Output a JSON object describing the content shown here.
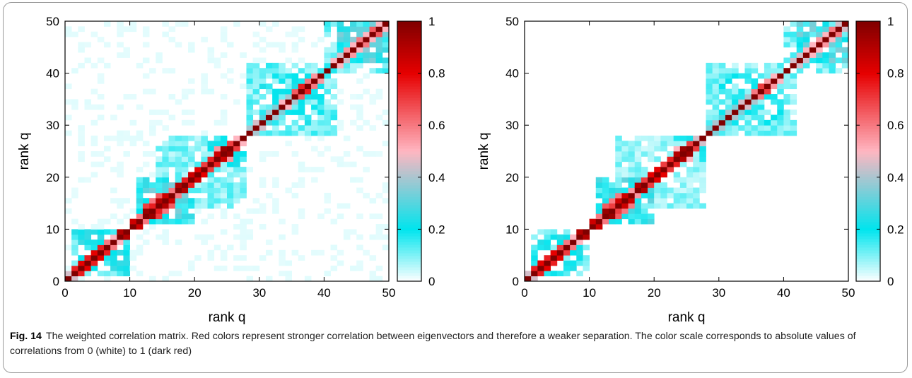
{
  "caption": {
    "label": "Fig. 14",
    "text": "The weighted correlation matrix. Red colors represent stronger correlation between eigenvectors and therefore a weaker separation. The color scale corresponds to absolute values of correlations from 0 (white) to 1 (dark red)"
  },
  "colors": {
    "scale": [
      "#ffffff",
      "#00e5ee",
      "#ffb6c1",
      "#e60000",
      "#800000"
    ],
    "scale_stops": [
      0,
      0.2,
      0.5,
      0.8,
      1.0
    ]
  },
  "chart_data": [
    {
      "type": "heatmap",
      "title": "",
      "xlabel": "rank q",
      "ylabel": "rank q",
      "xlim": [
        0,
        50
      ],
      "ylim": [
        0,
        50
      ],
      "xticks": [
        "0",
        "10",
        "20",
        "30",
        "40",
        "50"
      ],
      "yticks": [
        "0",
        "10",
        "20",
        "30",
        "40",
        "50"
      ],
      "colorbar": {
        "min": 0,
        "max": 1,
        "ticks": [
          "0",
          "0.2",
          "0.4",
          "0.6",
          "0.8",
          "1"
        ]
      },
      "matrix_size": 50,
      "pairs": [
        [
          1,
          2,
          0.45
        ],
        [
          2,
          3,
          0.75
        ],
        [
          3,
          4,
          0.8
        ],
        [
          4,
          5,
          0.75
        ],
        [
          5,
          6,
          0.8
        ],
        [
          6,
          7,
          0.75
        ],
        [
          7,
          8,
          0.6
        ],
        [
          8,
          9,
          0.5
        ],
        [
          9,
          10,
          0.9
        ],
        [
          11,
          12,
          0.85
        ],
        [
          12,
          13,
          0.6
        ],
        [
          13,
          14,
          0.95
        ],
        [
          13,
          15,
          0.7
        ],
        [
          14,
          15,
          0.75
        ],
        [
          14,
          16,
          0.6
        ],
        [
          15,
          16,
          0.9
        ],
        [
          15,
          17,
          0.65
        ],
        [
          16,
          17,
          0.85
        ],
        [
          17,
          18,
          0.6
        ],
        [
          18,
          19,
          0.9
        ],
        [
          19,
          20,
          0.75
        ],
        [
          20,
          21,
          0.85
        ],
        [
          21,
          22,
          0.8
        ],
        [
          22,
          23,
          0.7
        ],
        [
          23,
          24,
          0.75
        ],
        [
          24,
          25,
          0.85
        ],
        [
          25,
          26,
          0.95
        ],
        [
          26,
          27,
          0.7
        ],
        [
          24,
          26,
          0.55
        ],
        [
          27,
          28,
          0.5
        ],
        [
          29,
          30,
          0.4
        ],
        [
          30,
          31,
          0.45
        ],
        [
          31,
          32,
          0.3
        ],
        [
          32,
          33,
          0.4
        ],
        [
          33,
          34,
          0.35
        ],
        [
          34,
          35,
          0.5
        ],
        [
          35,
          36,
          0.4
        ],
        [
          36,
          37,
          0.65
        ],
        [
          37,
          38,
          0.75
        ],
        [
          38,
          39,
          0.6
        ],
        [
          39,
          40,
          0.55
        ],
        [
          42,
          43,
          0.5
        ],
        [
          43,
          44,
          0.45
        ],
        [
          44,
          45,
          0.55
        ],
        [
          45,
          46,
          0.5
        ],
        [
          46,
          47,
          0.6
        ],
        [
          47,
          48,
          0.5
        ],
        [
          48,
          49,
          0.65
        ],
        [
          49,
          50,
          0.5
        ]
      ],
      "blocks": [
        [
          1,
          10,
          0.22
        ],
        [
          11,
          20,
          0.28
        ],
        [
          14,
          28,
          0.12
        ],
        [
          22,
          28,
          0.2
        ],
        [
          28,
          42,
          0.14
        ],
        [
          30,
          40,
          0.2
        ],
        [
          40,
          50,
          0.15
        ],
        [
          42,
          50,
          0.3
        ],
        [
          0,
          50,
          0.02
        ]
      ]
    },
    {
      "type": "heatmap",
      "title": "",
      "xlabel": "rank q",
      "ylabel": "rank q",
      "xlim": [
        0,
        50
      ],
      "ylim": [
        0,
        50
      ],
      "xticks": [
        "0",
        "10",
        "20",
        "30",
        "40",
        "50"
      ],
      "yticks": [
        "0",
        "10",
        "20",
        "30",
        "40",
        "50"
      ],
      "colorbar": {
        "min": 0,
        "max": 1,
        "ticks": [
          "0",
          "0.2",
          "0.4",
          "0.6",
          "0.8",
          "1"
        ]
      },
      "matrix_size": 50,
      "pairs": [
        [
          1,
          2,
          0.45
        ],
        [
          2,
          3,
          0.75
        ],
        [
          3,
          4,
          0.8
        ],
        [
          4,
          5,
          0.75
        ],
        [
          5,
          6,
          0.8
        ],
        [
          6,
          7,
          0.7
        ],
        [
          7,
          8,
          0.6
        ],
        [
          8,
          9,
          0.5
        ],
        [
          9,
          10,
          0.9
        ],
        [
          11,
          12,
          0.85
        ],
        [
          12,
          13,
          0.6
        ],
        [
          13,
          14,
          0.95
        ],
        [
          13,
          15,
          0.65
        ],
        [
          14,
          15,
          0.7
        ],
        [
          14,
          16,
          0.6
        ],
        [
          15,
          16,
          0.85
        ],
        [
          15,
          17,
          0.6
        ],
        [
          16,
          17,
          0.85
        ],
        [
          17,
          18,
          0.55
        ],
        [
          18,
          19,
          0.9
        ],
        [
          19,
          20,
          0.7
        ],
        [
          20,
          21,
          0.8
        ],
        [
          21,
          22,
          0.8
        ],
        [
          22,
          23,
          0.7
        ],
        [
          23,
          24,
          0.75
        ],
        [
          24,
          25,
          0.9
        ],
        [
          25,
          26,
          0.95
        ],
        [
          26,
          27,
          0.7
        ],
        [
          24,
          26,
          0.5
        ],
        [
          27,
          28,
          0.45
        ],
        [
          29,
          30,
          0.35
        ],
        [
          30,
          31,
          0.4
        ],
        [
          31,
          32,
          0.3
        ],
        [
          32,
          33,
          0.4
        ],
        [
          33,
          34,
          0.35
        ],
        [
          34,
          35,
          0.45
        ],
        [
          35,
          36,
          0.4
        ],
        [
          36,
          37,
          0.6
        ],
        [
          37,
          38,
          0.7
        ],
        [
          38,
          39,
          0.55
        ],
        [
          39,
          40,
          0.5
        ],
        [
          42,
          43,
          0.45
        ],
        [
          43,
          44,
          0.45
        ],
        [
          44,
          45,
          0.5
        ],
        [
          45,
          46,
          0.5
        ],
        [
          46,
          47,
          0.55
        ],
        [
          47,
          48,
          0.5
        ],
        [
          48,
          49,
          0.6
        ],
        [
          49,
          50,
          0.45
        ]
      ],
      "blocks": [
        [
          1,
          10,
          0.2
        ],
        [
          11,
          20,
          0.26
        ],
        [
          14,
          28,
          0.1
        ],
        [
          22,
          28,
          0.18
        ],
        [
          28,
          42,
          0.12
        ],
        [
          30,
          40,
          0.18
        ],
        [
          40,
          50,
          0.13
        ],
        [
          42,
          50,
          0.28
        ],
        [
          0,
          50,
          0.015
        ]
      ]
    }
  ]
}
